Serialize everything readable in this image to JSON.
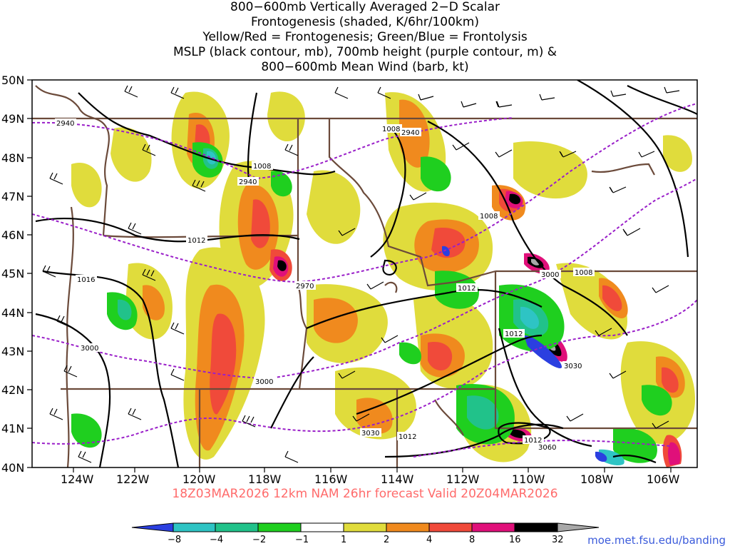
{
  "title": {
    "lines": [
      "800−600mb Vertically Averaged 2−D Scalar",
      "Frontogenesis (shaded, K/6hr/100km)",
      "Yellow/Red = Frontogenesis;  Green/Blue = Frontolysis",
      "MSLP (black contour, mb), 700mb height (purple contour, m) &",
      "800−600mb Mean Wind (barb, kt)"
    ]
  },
  "axes": {
    "lat_labels": [
      "50N",
      "49N",
      "48N",
      "47N",
      "46N",
      "45N",
      "44N",
      "43N",
      "42N",
      "41N",
      "40N"
    ],
    "lon_labels": [
      "124W",
      "122W",
      "120W",
      "118W",
      "116W",
      "114W",
      "112W",
      "110W",
      "108W",
      "106W"
    ]
  },
  "contour_labels": {
    "mslp": [
      "1008",
      "1008",
      "1012",
      "1016",
      "1008",
      "1012",
      "1008",
      "1012",
      "1012",
      "1012"
    ],
    "height": [
      "2940",
      "2940",
      "2940",
      "2970",
      "3000",
      "3000",
      "3000",
      "3030",
      "3030",
      "3060"
    ]
  },
  "valid_text": "18Z03MAR2026 12km NAM 26hr forecast Valid 20Z04MAR2026",
  "colorbar": {
    "labels": [
      "−8",
      "−4",
      "−2",
      "−1",
      "1",
      "2",
      "4",
      "8",
      "16",
      "32"
    ],
    "colors": {
      "lt_m8": "#2b3fe0",
      "m8_m4": "#2ec4c4",
      "m4_m2": "#21c28a",
      "m2_m1": "#1fcf1f",
      "m1_1": "#ffffff",
      "1_2": "#e0dc3c",
      "2_4": "#f08a1e",
      "4_8": "#f04a3a",
      "8_16": "#e0107a",
      "16_32": "#000000",
      "gt_32": "#a8a8a8"
    }
  },
  "colors": {
    "mslp_contour": "#000000",
    "height_contour": "#9a1fc9",
    "borders": "#6b4a3a",
    "valid_text": "#ff6b6b",
    "credit_text": "#3b5bdb"
  },
  "credit": "moe.met.fsu.edu/banding"
}
